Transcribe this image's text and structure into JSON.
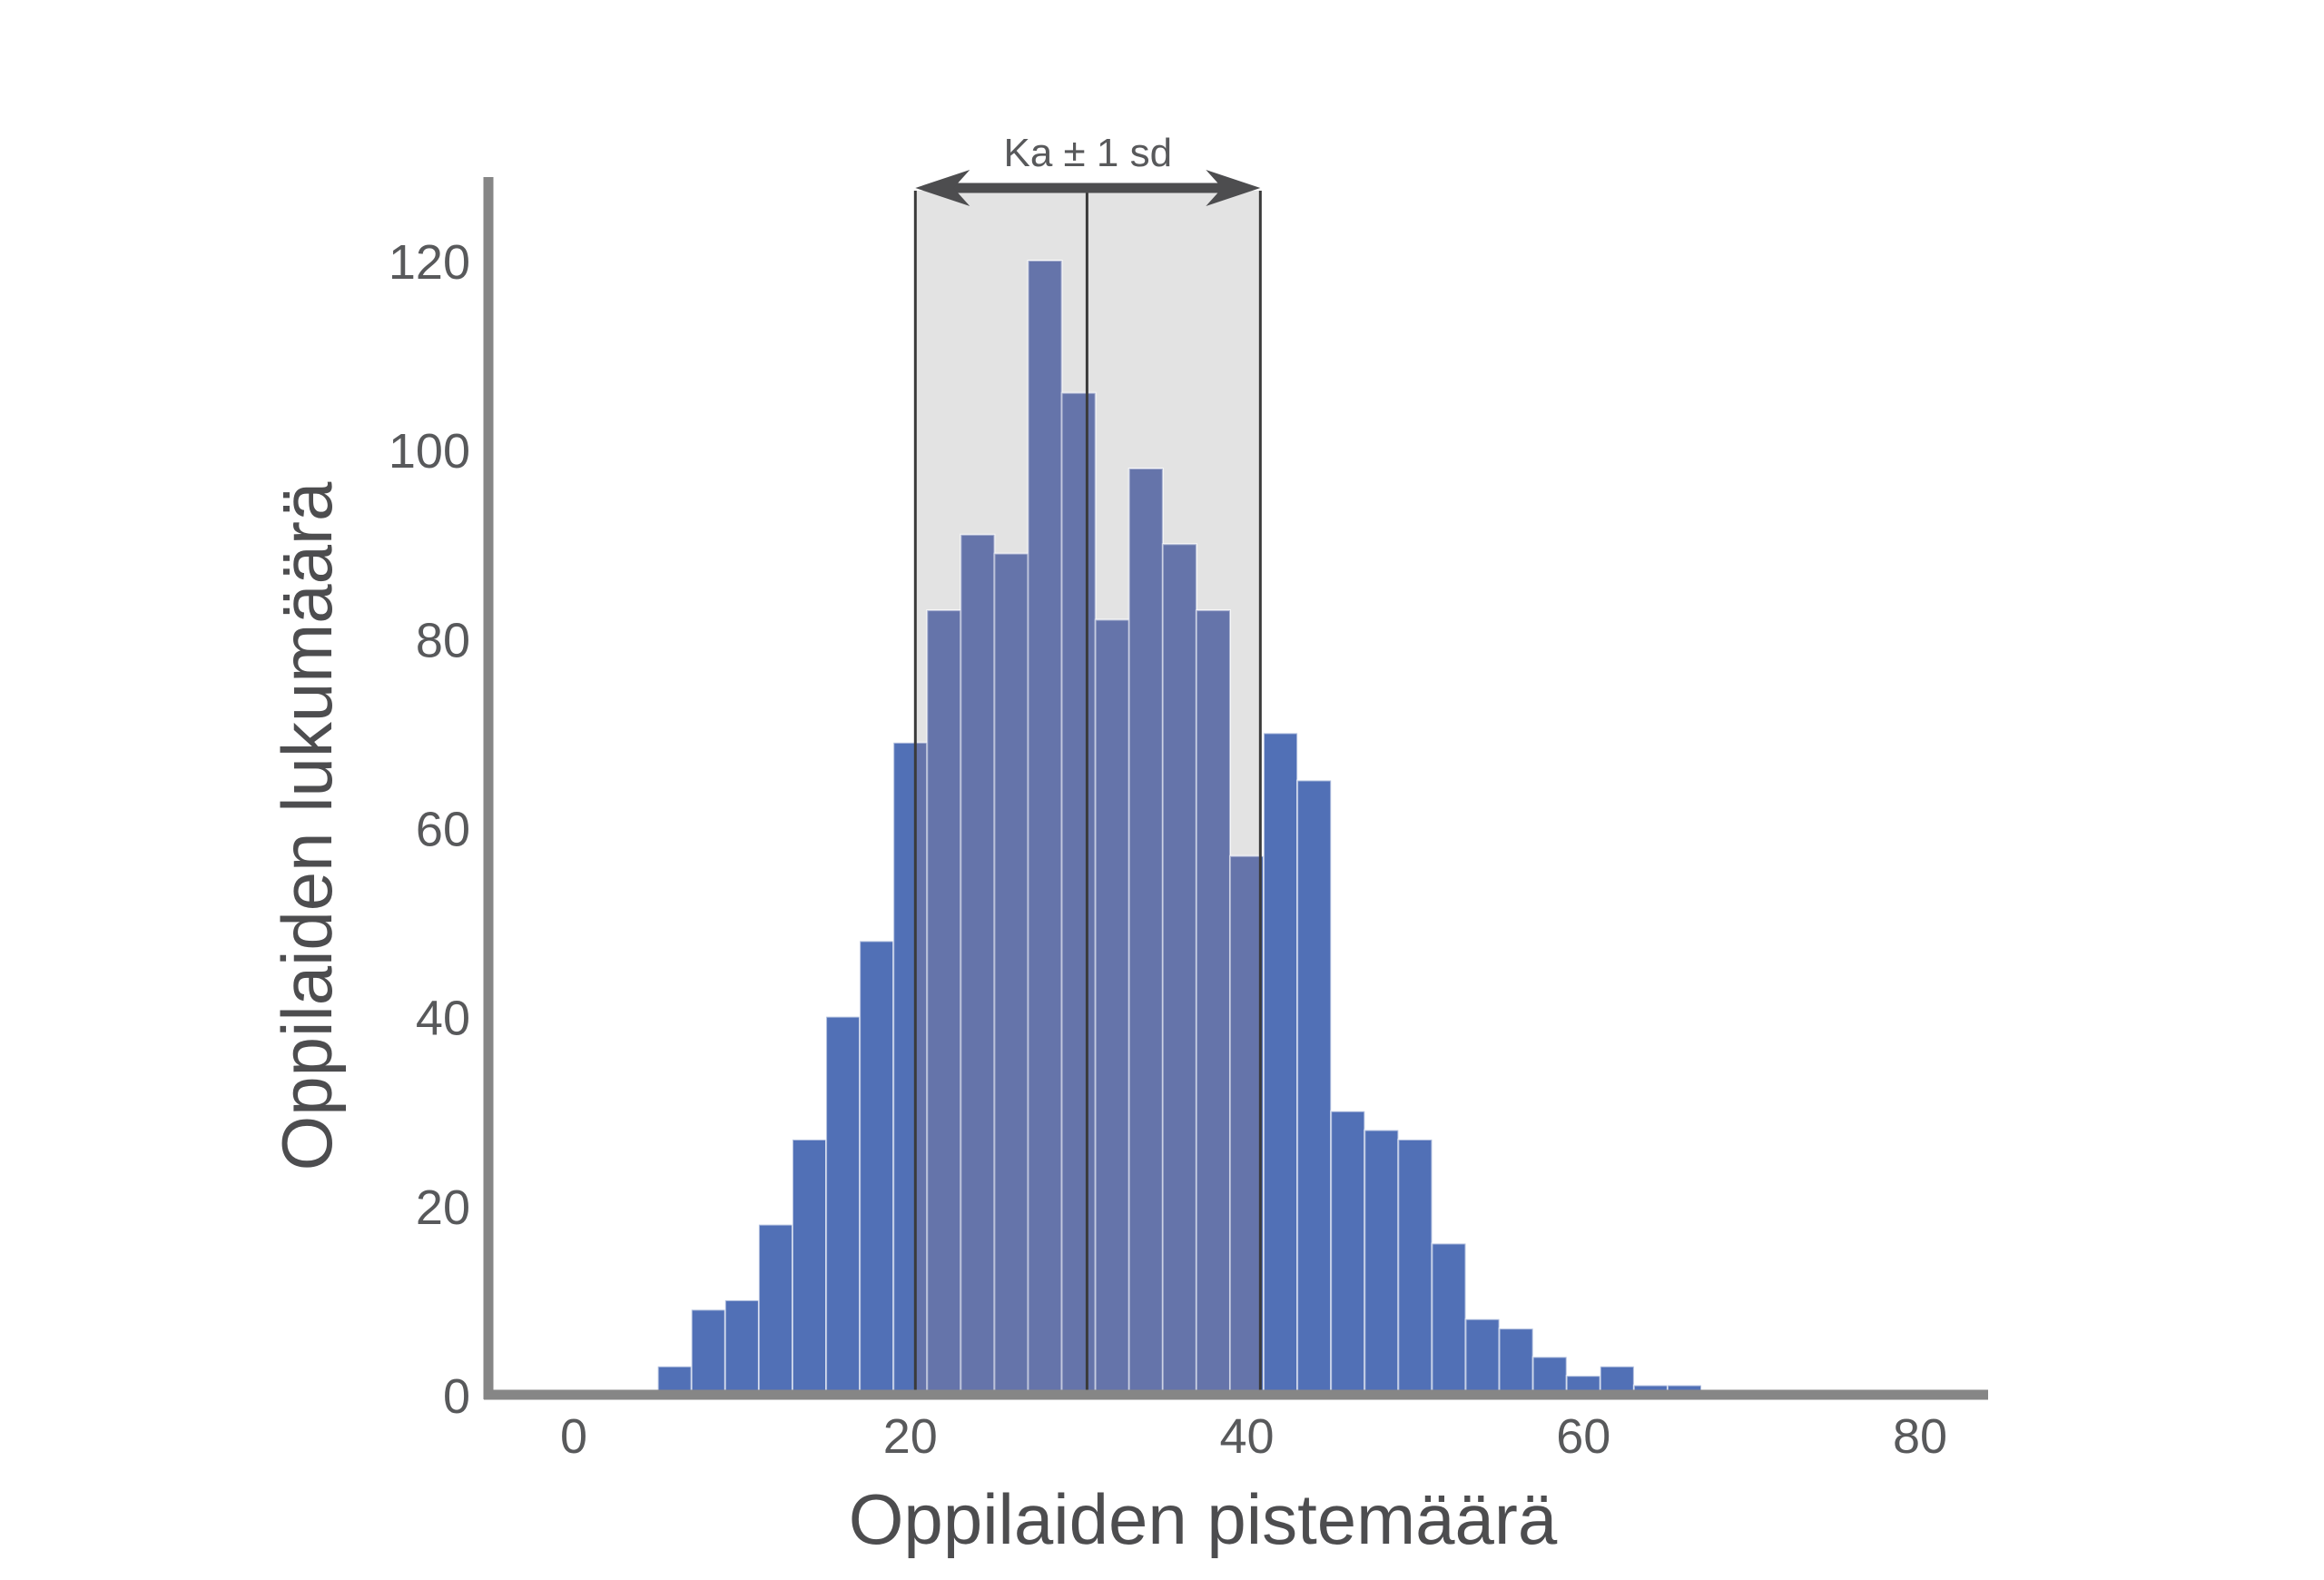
{
  "chart_data": {
    "type": "bar",
    "variant": "histogram",
    "xlabel": "Oppilaiden pistemäärä",
    "ylabel": "Oppilaiden lukumäärä",
    "xlim": [
      -5,
      84
    ],
    "ylim": [
      0,
      128
    ],
    "x_ticks": [
      0,
      20,
      40,
      60,
      80
    ],
    "y_ticks": [
      0,
      20,
      40,
      60,
      80,
      100,
      120
    ],
    "bin_width": 2,
    "bins": [
      {
        "x0": 5,
        "x1": 7,
        "count": 3
      },
      {
        "x0": 7,
        "x1": 9,
        "count": 9
      },
      {
        "x0": 9,
        "x1": 11,
        "count": 10
      },
      {
        "x0": 11,
        "x1": 13,
        "count": 18
      },
      {
        "x0": 13,
        "x1": 15,
        "count": 27
      },
      {
        "x0": 15,
        "x1": 17,
        "count": 40
      },
      {
        "x0": 17,
        "x1": 19,
        "count": 48
      },
      {
        "x0": 19,
        "x1": 21,
        "count": 69
      },
      {
        "x0": 21,
        "x1": 23,
        "count": 83
      },
      {
        "x0": 23,
        "x1": 25,
        "count": 91
      },
      {
        "x0": 25,
        "x1": 27,
        "count": 89
      },
      {
        "x0": 27,
        "x1": 29,
        "count": 120
      },
      {
        "x0": 29,
        "x1": 31,
        "count": 106
      },
      {
        "x0": 31,
        "x1": 33,
        "count": 82
      },
      {
        "x0": 33,
        "x1": 35,
        "count": 98
      },
      {
        "x0": 35,
        "x1": 37,
        "count": 90
      },
      {
        "x0": 37,
        "x1": 39,
        "count": 83
      },
      {
        "x0": 39,
        "x1": 41,
        "count": 57
      },
      {
        "x0": 41,
        "x1": 43,
        "count": 70
      },
      {
        "x0": 43,
        "x1": 45,
        "count": 65
      },
      {
        "x0": 45,
        "x1": 47,
        "count": 30
      },
      {
        "x0": 47,
        "x1": 49,
        "count": 28
      },
      {
        "x0": 49,
        "x1": 51,
        "count": 27
      },
      {
        "x0": 51,
        "x1": 53,
        "count": 16
      },
      {
        "x0": 53,
        "x1": 55,
        "count": 8
      },
      {
        "x0": 55,
        "x1": 57,
        "count": 7
      },
      {
        "x0": 57,
        "x1": 59,
        "count": 4
      },
      {
        "x0": 59,
        "x1": 61,
        "count": 2
      },
      {
        "x0": 61,
        "x1": 63,
        "count": 3
      },
      {
        "x0": 63,
        "x1": 65,
        "count": 1
      },
      {
        "x0": 65,
        "x1": 67,
        "count": 1
      }
    ],
    "annotations": {
      "mean": 30.5,
      "sd_band": [
        20.3,
        40.8
      ],
      "label": "Ka ± 1 sd"
    },
    "grid": false,
    "legend": "none",
    "colors": {
      "bar": "#5170b6",
      "bar_in_band": "#6574aa",
      "band": "#e3e3e3",
      "axis": "#868686",
      "band_edge": "#3a3a3a",
      "arrow": "#4d4d4f",
      "text": "#58595b"
    }
  }
}
